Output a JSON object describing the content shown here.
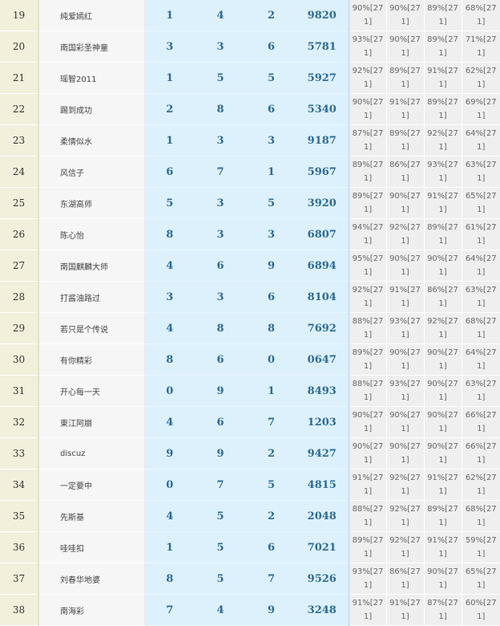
{
  "colors": {
    "rank_bg": "#f2efdb",
    "name_bg": "#f6f6f6",
    "number_bg": "#dcf1fc",
    "number_text": "#2d6b96",
    "percent_bg": "#efefef"
  },
  "rows": [
    {
      "rank": "19",
      "name": "纯爱嫣红",
      "d1": "1",
      "d2": "4",
      "d3": "2",
      "code": "9820",
      "pcts": [
        "90%[271]",
        "90%[271]",
        "89%[271]",
        "68%[271]"
      ]
    },
    {
      "rank": "20",
      "name": "南国彩圣神童",
      "d1": "3",
      "d2": "3",
      "d3": "6",
      "code": "5781",
      "pcts": [
        "93%[271]",
        "90%[271]",
        "89%[271]",
        "71%[271]"
      ]
    },
    {
      "rank": "21",
      "name": "瑶智2011",
      "d1": "1",
      "d2": "5",
      "d3": "5",
      "code": "5927",
      "pcts": [
        "92%[271]",
        "89%[271]",
        "91%[271]",
        "62%[271]"
      ]
    },
    {
      "rank": "22",
      "name": "踢到成功",
      "d1": "2",
      "d2": "8",
      "d3": "6",
      "code": "5340",
      "pcts": [
        "90%[271]",
        "91%[271]",
        "89%[271]",
        "69%[271]"
      ]
    },
    {
      "rank": "23",
      "name": "柔情似水",
      "d1": "1",
      "d2": "3",
      "d3": "3",
      "code": "9187",
      "pcts": [
        "87%[271]",
        "89%[271]",
        "92%[271]",
        "64%[271]"
      ]
    },
    {
      "rank": "24",
      "name": "风信子",
      "d1": "6",
      "d2": "7",
      "d3": "1",
      "code": "5967",
      "pcts": [
        "89%[271]",
        "86%[271]",
        "93%[271]",
        "63%[271]"
      ]
    },
    {
      "rank": "25",
      "name": "东湖高师",
      "d1": "5",
      "d2": "3",
      "d3": "5",
      "code": "3920",
      "pcts": [
        "89%[271]",
        "90%[271]",
        "91%[271]",
        "65%[271]"
      ]
    },
    {
      "rank": "26",
      "name": "陈心怡",
      "d1": "8",
      "d2": "3",
      "d3": "3",
      "code": "6807",
      "pcts": [
        "94%[271]",
        "92%[271]",
        "89%[271]",
        "61%[271]"
      ]
    },
    {
      "rank": "27",
      "name": "南国麒麟大师",
      "d1": "4",
      "d2": "6",
      "d3": "9",
      "code": "6894",
      "pcts": [
        "95%[271]",
        "90%[271]",
        "90%[271]",
        "64%[271]"
      ]
    },
    {
      "rank": "28",
      "name": "打酱油路过",
      "d1": "3",
      "d2": "3",
      "d3": "6",
      "code": "8104",
      "pcts": [
        "92%[271]",
        "91%[271]",
        "86%[271]",
        "63%[271]"
      ]
    },
    {
      "rank": "29",
      "name": "若只是个传说",
      "d1": "4",
      "d2": "8",
      "d3": "8",
      "code": "7692",
      "pcts": [
        "88%[271]",
        "93%[271]",
        "92%[271]",
        "68%[271]"
      ]
    },
    {
      "rank": "30",
      "name": "有你精彩",
      "d1": "8",
      "d2": "6",
      "d3": "0",
      "code": "0647",
      "pcts": [
        "89%[271]",
        "90%[271]",
        "90%[271]",
        "64%[271]"
      ]
    },
    {
      "rank": "31",
      "name": "开心每一天",
      "d1": "0",
      "d2": "9",
      "d3": "1",
      "code": "8493",
      "pcts": [
        "88%[271]",
        "93%[271]",
        "90%[271]",
        "63%[271]"
      ]
    },
    {
      "rank": "32",
      "name": "東江阿崩",
      "d1": "4",
      "d2": "6",
      "d3": "7",
      "code": "1203",
      "pcts": [
        "90%[271]",
        "90%[271]",
        "90%[271]",
        "66%[271]"
      ]
    },
    {
      "rank": "33",
      "name": "discuz",
      "d1": "9",
      "d2": "9",
      "d3": "2",
      "code": "9427",
      "pcts": [
        "90%[271]",
        "90%[271]",
        "90%[271]",
        "66%[271]"
      ]
    },
    {
      "rank": "34",
      "name": "一定要中",
      "d1": "0",
      "d2": "7",
      "d3": "5",
      "code": "4815",
      "pcts": [
        "91%[271]",
        "92%[271]",
        "91%[271]",
        "62%[271]"
      ]
    },
    {
      "rank": "35",
      "name": "先斯基",
      "d1": "4",
      "d2": "5",
      "d3": "2",
      "code": "2048",
      "pcts": [
        "88%[271]",
        "92%[271]",
        "89%[271]",
        "68%[271]"
      ]
    },
    {
      "rank": "36",
      "name": "哇哇扣",
      "d1": "1",
      "d2": "5",
      "d3": "6",
      "code": "7021",
      "pcts": [
        "89%[271]",
        "92%[271]",
        "91%[271]",
        "59%[271]"
      ]
    },
    {
      "rank": "37",
      "name": "刘春华地婆",
      "d1": "8",
      "d2": "5",
      "d3": "7",
      "code": "9526",
      "pcts": [
        "93%[271]",
        "86%[271]",
        "90%[271]",
        "65%[271]"
      ]
    },
    {
      "rank": "38",
      "name": "南海彩",
      "d1": "7",
      "d2": "4",
      "d3": "9",
      "code": "3248",
      "pcts": [
        "91%[271]",
        "91%[271]",
        "87%[271]",
        "60%[271]"
      ]
    }
  ]
}
